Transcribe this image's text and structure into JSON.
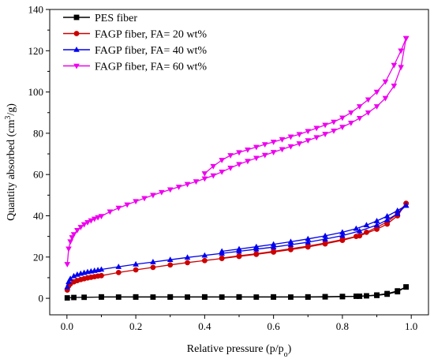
{
  "chart_data": {
    "type": "line",
    "title": "",
    "xlabel": "Relative pressure (p/p",
    "xlabel_sub": "o",
    "xlabel_end": ")",
    "ylabel": "Quantity absorbed (cm",
    "ylabel_sup": "3",
    "ylabel_end": "/g)",
    "xlim": [
      -0.05,
      1.05
    ],
    "ylim": [
      -8,
      140
    ],
    "xticks": [
      0.0,
      0.2,
      0.4,
      0.6,
      0.8,
      1.0
    ],
    "xtick_labels": [
      "0.0",
      "0.2",
      "0.4",
      "0.6",
      "0.8",
      "1.0"
    ],
    "yticks": [
      0,
      20,
      40,
      60,
      80,
      100,
      120,
      140
    ],
    "ytick_labels": [
      "0",
      "20",
      "40",
      "60",
      "80",
      "100",
      "120",
      "140"
    ],
    "grid": false,
    "legend_position": "top-left",
    "series": [
      {
        "name": "PES fiber",
        "color": "#000000",
        "marker": "square",
        "adsorption": [
          [
            0.001,
            0.2
          ],
          [
            0.02,
            0.4
          ],
          [
            0.05,
            0.5
          ],
          [
            0.1,
            0.6
          ],
          [
            0.15,
            0.6
          ],
          [
            0.2,
            0.6
          ],
          [
            0.25,
            0.6
          ],
          [
            0.3,
            0.6
          ],
          [
            0.35,
            0.6
          ],
          [
            0.4,
            0.6
          ],
          [
            0.45,
            0.6
          ],
          [
            0.5,
            0.6
          ],
          [
            0.55,
            0.6
          ],
          [
            0.6,
            0.6
          ],
          [
            0.65,
            0.6
          ],
          [
            0.7,
            0.6
          ],
          [
            0.75,
            0.7
          ],
          [
            0.8,
            0.8
          ],
          [
            0.85,
            1.0
          ],
          [
            0.9,
            1.4
          ],
          [
            0.93,
            2.0
          ],
          [
            0.96,
            3.2
          ],
          [
            0.985,
            5.5
          ]
        ],
        "desorption": [
          [
            0.985,
            5.5
          ],
          [
            0.96,
            3.6
          ],
          [
            0.93,
            2.3
          ],
          [
            0.9,
            1.6
          ],
          [
            0.87,
            1.2
          ],
          [
            0.84,
            1.0
          ],
          [
            0.8,
            0.9
          ],
          [
            0.75,
            0.8
          ],
          [
            0.7,
            0.7
          ],
          [
            0.6,
            0.7
          ],
          [
            0.5,
            0.7
          ],
          [
            0.4,
            0.7
          ],
          [
            0.3,
            0.7
          ],
          [
            0.2,
            0.7
          ],
          [
            0.1,
            0.7
          ]
        ]
      },
      {
        "name": "FAGP fiber, FA= 20 wt%",
        "color": "#cc0000",
        "marker": "circle",
        "adsorption": [
          [
            0.001,
            4.0
          ],
          [
            0.005,
            6.0
          ],
          [
            0.01,
            7.0
          ],
          [
            0.02,
            8.0
          ],
          [
            0.03,
            8.6
          ],
          [
            0.04,
            9.1
          ],
          [
            0.05,
            9.5
          ],
          [
            0.06,
            9.9
          ],
          [
            0.07,
            10.2
          ],
          [
            0.08,
            10.5
          ],
          [
            0.09,
            10.8
          ],
          [
            0.1,
            11.0
          ],
          [
            0.15,
            12.5
          ],
          [
            0.2,
            13.8
          ],
          [
            0.25,
            15.0
          ],
          [
            0.3,
            16.2
          ],
          [
            0.35,
            17.3
          ],
          [
            0.4,
            18.3
          ],
          [
            0.45,
            19.3
          ],
          [
            0.5,
            20.3
          ],
          [
            0.55,
            21.3
          ],
          [
            0.6,
            22.4
          ],
          [
            0.65,
            23.6
          ],
          [
            0.7,
            24.9
          ],
          [
            0.75,
            26.4
          ],
          [
            0.8,
            28.1
          ],
          [
            0.85,
            30.3
          ],
          [
            0.9,
            33.5
          ],
          [
            0.93,
            36.0
          ],
          [
            0.96,
            40.0
          ],
          [
            0.985,
            46.0
          ]
        ],
        "desorption": [
          [
            0.985,
            46.0
          ],
          [
            0.96,
            41.0
          ],
          [
            0.93,
            37.0
          ],
          [
            0.9,
            34.5
          ],
          [
            0.87,
            32.0
          ],
          [
            0.84,
            30.0
          ],
          [
            0.8,
            28.5
          ],
          [
            0.75,
            26.8
          ],
          [
            0.7,
            25.3
          ],
          [
            0.65,
            24.0
          ],
          [
            0.6,
            22.8
          ],
          [
            0.55,
            21.6
          ],
          [
            0.5,
            20.6
          ],
          [
            0.45,
            19.5
          ]
        ]
      },
      {
        "name": "FAGP fiber, FA= 40 wt%",
        "color": "#0000ee",
        "marker": "triangle-up",
        "adsorption": [
          [
            0.001,
            5.5
          ],
          [
            0.005,
            8.0
          ],
          [
            0.01,
            9.5
          ],
          [
            0.02,
            10.8
          ],
          [
            0.03,
            11.5
          ],
          [
            0.04,
            12.0
          ],
          [
            0.05,
            12.4
          ],
          [
            0.06,
            12.8
          ],
          [
            0.07,
            13.1
          ],
          [
            0.08,
            13.4
          ],
          [
            0.09,
            13.7
          ],
          [
            0.1,
            14.0
          ],
          [
            0.15,
            15.3
          ],
          [
            0.2,
            16.5
          ],
          [
            0.25,
            17.6
          ],
          [
            0.3,
            18.7
          ],
          [
            0.35,
            19.8
          ],
          [
            0.4,
            20.8
          ],
          [
            0.45,
            21.8
          ],
          [
            0.5,
            22.8
          ],
          [
            0.55,
            23.8
          ],
          [
            0.6,
            24.8
          ],
          [
            0.65,
            26.0
          ],
          [
            0.7,
            27.2
          ],
          [
            0.75,
            28.7
          ],
          [
            0.8,
            30.4
          ],
          [
            0.85,
            32.6
          ],
          [
            0.9,
            35.5
          ],
          [
            0.93,
            38.0
          ],
          [
            0.96,
            41.0
          ],
          [
            0.985,
            45.0
          ]
        ],
        "desorption": [
          [
            0.985,
            45.0
          ],
          [
            0.96,
            42.5
          ],
          [
            0.93,
            39.8
          ],
          [
            0.9,
            37.5
          ],
          [
            0.87,
            35.5
          ],
          [
            0.84,
            33.8
          ],
          [
            0.8,
            32.0
          ],
          [
            0.75,
            30.3
          ],
          [
            0.7,
            28.8
          ],
          [
            0.65,
            27.4
          ],
          [
            0.6,
            26.2
          ],
          [
            0.55,
            25.0
          ],
          [
            0.5,
            23.9
          ],
          [
            0.45,
            22.8
          ]
        ]
      },
      {
        "name": "FAGP fiber, FA= 60 wt%",
        "color": "#ee00ee",
        "marker": "triangle-down",
        "adsorption": [
          [
            0.001,
            16.5
          ],
          [
            0.005,
            24.0
          ],
          [
            0.01,
            27.5
          ],
          [
            0.015,
            29.5
          ],
          [
            0.02,
            31.0
          ],
          [
            0.03,
            33.0
          ],
          [
            0.04,
            34.5
          ],
          [
            0.05,
            35.8
          ],
          [
            0.06,
            36.8
          ],
          [
            0.07,
            37.7
          ],
          [
            0.08,
            38.5
          ],
          [
            0.09,
            39.2
          ],
          [
            0.1,
            39.8
          ],
          [
            0.125,
            42.0
          ],
          [
            0.15,
            43.8
          ],
          [
            0.175,
            45.4
          ],
          [
            0.2,
            47.0
          ],
          [
            0.225,
            48.5
          ],
          [
            0.25,
            50.0
          ],
          [
            0.275,
            51.4
          ],
          [
            0.3,
            52.7
          ],
          [
            0.325,
            54.0
          ],
          [
            0.35,
            55.3
          ],
          [
            0.375,
            56.6
          ],
          [
            0.4,
            58.0
          ],
          [
            0.425,
            59.5
          ],
          [
            0.45,
            61.3
          ],
          [
            0.475,
            63.2
          ],
          [
            0.5,
            65.0
          ],
          [
            0.525,
            66.5
          ],
          [
            0.55,
            68.0
          ],
          [
            0.575,
            69.4
          ],
          [
            0.6,
            70.8
          ],
          [
            0.625,
            72.2
          ],
          [
            0.65,
            73.6
          ],
          [
            0.675,
            75.0
          ],
          [
            0.7,
            76.5
          ],
          [
            0.725,
            78.0
          ],
          [
            0.75,
            79.6
          ],
          [
            0.775,
            81.2
          ],
          [
            0.8,
            83.0
          ],
          [
            0.825,
            85.0
          ],
          [
            0.85,
            87.3
          ],
          [
            0.875,
            90.0
          ],
          [
            0.9,
            93.0
          ],
          [
            0.925,
            97.0
          ],
          [
            0.95,
            103.0
          ],
          [
            0.97,
            112.0
          ],
          [
            0.985,
            126.0
          ]
        ],
        "desorption": [
          [
            0.985,
            126.0
          ],
          [
            0.97,
            120.0
          ],
          [
            0.95,
            113.0
          ],
          [
            0.925,
            105.0
          ],
          [
            0.9,
            100.0
          ],
          [
            0.875,
            96.3
          ],
          [
            0.85,
            93.0
          ],
          [
            0.825,
            90.0
          ],
          [
            0.8,
            87.5
          ],
          [
            0.775,
            85.5
          ],
          [
            0.75,
            84.0
          ],
          [
            0.725,
            82.5
          ],
          [
            0.7,
            81.0
          ],
          [
            0.675,
            79.5
          ],
          [
            0.65,
            78.3
          ],
          [
            0.625,
            77.0
          ],
          [
            0.6,
            75.8
          ],
          [
            0.575,
            74.6
          ],
          [
            0.55,
            73.3
          ],
          [
            0.525,
            72.0
          ],
          [
            0.5,
            70.7
          ],
          [
            0.475,
            69.3
          ],
          [
            0.45,
            67.0
          ],
          [
            0.425,
            64.0
          ],
          [
            0.4,
            60.5
          ]
        ]
      }
    ]
  }
}
